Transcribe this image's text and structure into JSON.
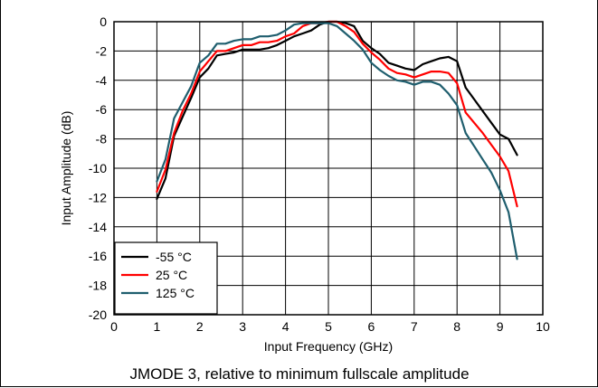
{
  "chart_data": {
    "type": "line",
    "title": "",
    "caption": "JMODE 3, relative to minimum fullscale amplitude",
    "xlabel": "Input Frequency (GHz)",
    "ylabel": "Input Amplitude (dB)",
    "xlim": [
      0,
      10
    ],
    "ylim": [
      -20,
      0
    ],
    "xticks": [
      0,
      1,
      2,
      3,
      4,
      5,
      6,
      7,
      8,
      9,
      10
    ],
    "yticks": [
      0,
      -2,
      -4,
      -6,
      -8,
      -10,
      -12,
      -14,
      -16,
      -18,
      -20
    ],
    "grid": true,
    "legend_position": "bottom-left",
    "series": [
      {
        "name": "-55 °C",
        "color": "#000000",
        "x": [
          1.0,
          1.2,
          1.4,
          1.6,
          1.8,
          2.0,
          2.2,
          2.4,
          2.6,
          2.8,
          3.0,
          3.2,
          3.4,
          3.6,
          3.8,
          4.0,
          4.2,
          4.4,
          4.6,
          4.8,
          5.0,
          5.2,
          5.4,
          5.6,
          5.8,
          6.0,
          6.2,
          6.4,
          6.6,
          6.8,
          7.0,
          7.2,
          7.4,
          7.6,
          7.8,
          8.0,
          8.2,
          8.4,
          8.6,
          8.8,
          9.0,
          9.2,
          9.4
        ],
        "y": [
          -12.1,
          -10.7,
          -7.8,
          -6.5,
          -5.2,
          -3.8,
          -3.2,
          -2.3,
          -2.2,
          -2.1,
          -1.9,
          -1.9,
          -1.9,
          -1.8,
          -1.6,
          -1.3,
          -1.0,
          -0.8,
          -0.6,
          -0.2,
          0.0,
          0.0,
          -0.1,
          -0.3,
          -1.3,
          -1.8,
          -2.2,
          -2.8,
          -3.0,
          -3.2,
          -3.3,
          -2.9,
          -2.7,
          -2.5,
          -2.4,
          -2.7,
          -4.5,
          -5.3,
          -6.1,
          -6.9,
          -7.7,
          -8.0,
          -9.1
        ]
      },
      {
        "name": "25 °C",
        "color": "#ff0000",
        "x": [
          1.0,
          1.2,
          1.4,
          1.6,
          1.8,
          2.0,
          2.2,
          2.4,
          2.6,
          2.8,
          3.0,
          3.2,
          3.4,
          3.6,
          3.8,
          4.0,
          4.2,
          4.4,
          4.6,
          4.8,
          5.0,
          5.2,
          5.4,
          5.6,
          5.8,
          6.0,
          6.2,
          6.4,
          6.6,
          6.8,
          7.0,
          7.2,
          7.4,
          7.6,
          7.8,
          8.0,
          8.2,
          8.4,
          8.6,
          8.8,
          9.0,
          9.2,
          9.4
        ],
        "y": [
          -11.6,
          -10.1,
          -7.6,
          -6.1,
          -4.9,
          -3.4,
          -2.7,
          -2.0,
          -2.0,
          -1.8,
          -1.6,
          -1.6,
          -1.4,
          -1.4,
          -1.3,
          -1.0,
          -0.8,
          -0.3,
          -0.1,
          -0.1,
          0.0,
          0.0,
          -0.3,
          -0.7,
          -1.5,
          -2.1,
          -2.6,
          -3.2,
          -3.5,
          -3.6,
          -3.8,
          -3.6,
          -3.4,
          -3.4,
          -3.5,
          -4.2,
          -6.2,
          -6.9,
          -7.6,
          -8.4,
          -9.2,
          -10.2,
          -12.6
        ]
      },
      {
        "name": "125 °C",
        "color": "#1f5e6e",
        "x": [
          1.0,
          1.2,
          1.4,
          1.6,
          1.8,
          2.0,
          2.2,
          2.4,
          2.6,
          2.8,
          3.0,
          3.2,
          3.4,
          3.6,
          3.8,
          4.0,
          4.2,
          4.4,
          4.6,
          4.8,
          5.0,
          5.2,
          5.4,
          5.6,
          5.8,
          6.0,
          6.2,
          6.4,
          6.6,
          6.8,
          7.0,
          7.2,
          7.4,
          7.6,
          7.8,
          8.0,
          8.2,
          8.4,
          8.6,
          8.8,
          9.0,
          9.2,
          9.4
        ],
        "y": [
          -10.9,
          -9.4,
          -6.6,
          -5.5,
          -4.4,
          -2.8,
          -2.3,
          -1.5,
          -1.5,
          -1.3,
          -1.2,
          -1.2,
          -1.0,
          -1.0,
          -0.9,
          -0.6,
          -0.2,
          -0.1,
          -0.1,
          -0.1,
          -0.1,
          -0.3,
          -0.8,
          -1.3,
          -1.9,
          -2.8,
          -3.3,
          -3.7,
          -4.0,
          -4.1,
          -4.3,
          -4.1,
          -4.1,
          -4.3,
          -4.9,
          -5.7,
          -7.6,
          -8.5,
          -9.4,
          -10.3,
          -11.5,
          -13.0,
          -16.2
        ]
      }
    ]
  }
}
